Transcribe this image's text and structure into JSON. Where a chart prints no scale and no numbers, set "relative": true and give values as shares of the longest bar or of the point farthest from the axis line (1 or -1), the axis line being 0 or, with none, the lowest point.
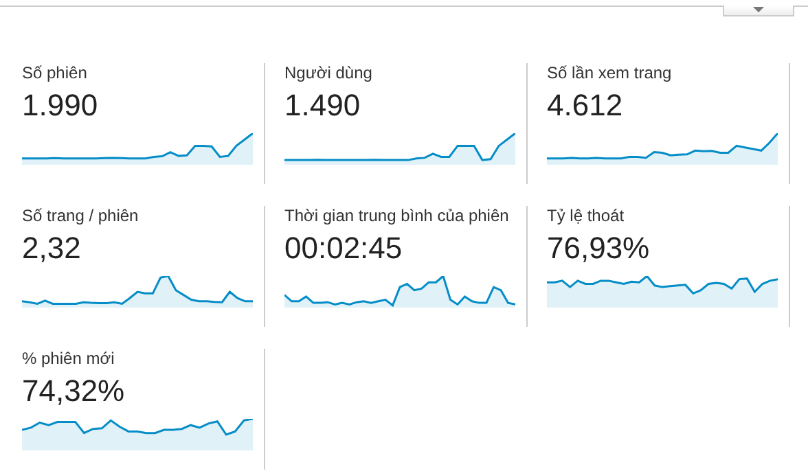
{
  "chart_data": [
    {
      "type": "area",
      "relative": true,
      "title": "Số phiên",
      "subtitle": "1.990",
      "categories": [
        null,
        null,
        null,
        null,
        null,
        null,
        null,
        null,
        null,
        null,
        null,
        null,
        null,
        null,
        null,
        null,
        null,
        null,
        null,
        null,
        null,
        null,
        null,
        null,
        null,
        null,
        null,
        null,
        null
      ],
      "series": [
        {
          "color": "#058dc7",
          "values": [
            0.2,
            0.2,
            0.2,
            0.2,
            0.21,
            0.2,
            0.2,
            0.2,
            0.2,
            0.2,
            0.21,
            0.22,
            0.21,
            0.2,
            0.2,
            0.2,
            0.25,
            0.27,
            0.4,
            0.28,
            0.3,
            0.6,
            0.6,
            0.58,
            0.25,
            0.28,
            0.6,
            0.8,
            1
          ]
        }
      ]
    },
    {
      "type": "area",
      "relative": true,
      "title": "Người dùng",
      "subtitle": "1.490",
      "categories": [
        null,
        null,
        null,
        null,
        null,
        null,
        null,
        null,
        null,
        null,
        null,
        null,
        null,
        null,
        null,
        null,
        null,
        null,
        null,
        null,
        null,
        null,
        null,
        null,
        null,
        null,
        null,
        null,
        null
      ],
      "series": [
        {
          "color": "#058dc7",
          "values": [
            0.15,
            0.15,
            0.15,
            0.15,
            0.16,
            0.15,
            0.15,
            0.15,
            0.15,
            0.15,
            0.15,
            0.16,
            0.15,
            0.15,
            0.15,
            0.15,
            0.2,
            0.22,
            0.35,
            0.25,
            0.25,
            0.6,
            0.6,
            0.6,
            0.15,
            0.18,
            0.6,
            0.8,
            1
          ]
        }
      ]
    },
    {
      "type": "area",
      "relative": true,
      "title": "Số lần xem trang",
      "subtitle": "4.612",
      "categories": [
        null,
        null,
        null,
        null,
        null,
        null,
        null,
        null,
        null,
        null,
        null,
        null,
        null,
        null,
        null,
        null,
        null,
        null,
        null,
        null,
        null,
        null,
        null,
        null,
        null,
        null,
        null,
        null,
        null
      ],
      "series": [
        {
          "color": "#058dc7",
          "values": [
            0.2,
            0.2,
            0.2,
            0.22,
            0.2,
            0.2,
            0.22,
            0.2,
            0.2,
            0.2,
            0.25,
            0.25,
            0.22,
            0.4,
            0.38,
            0.3,
            0.32,
            0.33,
            0.45,
            0.43,
            0.44,
            0.38,
            0.38,
            0.6,
            0.55,
            0.5,
            0.45,
            0.7,
            1
          ]
        }
      ]
    },
    {
      "type": "area",
      "relative": true,
      "title": "Số trang / phiên",
      "subtitle": "2,32",
      "categories": [
        null,
        null,
        null,
        null,
        null,
        null,
        null,
        null,
        null,
        null,
        null,
        null,
        null,
        null,
        null,
        null,
        null,
        null,
        null,
        null,
        null,
        null,
        null,
        null,
        null,
        null,
        null,
        null,
        null,
        null,
        null
      ],
      "series": [
        {
          "color": "#058dc7",
          "values": [
            0.2,
            0.17,
            0.12,
            0.22,
            0.12,
            0.12,
            0.12,
            0.12,
            0.17,
            0.15,
            0.14,
            0.14,
            0.17,
            0.12,
            0.3,
            0.5,
            0.45,
            0.45,
            0.95,
            1,
            0.55,
            0.4,
            0.25,
            0.2,
            0.2,
            0.18,
            0.17,
            0.5,
            0.3,
            0.2,
            0.2
          ]
        }
      ]
    },
    {
      "type": "area",
      "relative": true,
      "title": "Thời gian trung bình của phiên",
      "subtitle": "00:02:45",
      "categories": [
        null,
        null,
        null,
        null,
        null,
        null,
        null,
        null,
        null,
        null,
        null,
        null,
        null,
        null,
        null,
        null,
        null,
        null,
        null,
        null,
        null,
        null,
        null,
        null,
        null,
        null,
        null,
        null,
        null,
        null,
        null,
        null,
        null
      ],
      "series": [
        {
          "color": "#058dc7",
          "values": [
            0.4,
            0.2,
            0.2,
            0.35,
            0.15,
            0.15,
            0.17,
            0.1,
            0.15,
            0.1,
            0.17,
            0.2,
            0.15,
            0.2,
            0.25,
            0.07,
            0.65,
            0.75,
            0.55,
            0.6,
            0.8,
            0.8,
            1,
            0.25,
            0.1,
            0.35,
            0.2,
            0.15,
            0.15,
            0.65,
            0.55,
            0.15,
            0.1
          ]
        }
      ]
    },
    {
      "type": "area",
      "relative": true,
      "title": "Tỷ lệ thoát",
      "subtitle": "76,93%",
      "categories": [
        null,
        null,
        null,
        null,
        null,
        null,
        null,
        null,
        null,
        null,
        null,
        null,
        null,
        null,
        null,
        null,
        null,
        null,
        null,
        null,
        null,
        null,
        null,
        null,
        null,
        null,
        null,
        null,
        null,
        null,
        null
      ],
      "series": [
        {
          "color": "#058dc7",
          "values": [
            0.8,
            0.8,
            0.85,
            0.65,
            0.85,
            0.75,
            0.75,
            0.85,
            0.85,
            0.8,
            0.75,
            0.82,
            0.8,
            1,
            0.7,
            0.65,
            0.68,
            0.7,
            0.72,
            0.45,
            0.55,
            0.75,
            0.78,
            0.75,
            0.6,
            0.9,
            0.92,
            0.5,
            0.75,
            0.85,
            0.9
          ]
        }
      ]
    },
    {
      "type": "area",
      "relative": true,
      "title": "% phiên mới",
      "subtitle": "74,32%",
      "categories": [
        null,
        null,
        null,
        null,
        null,
        null,
        null,
        null,
        null,
        null,
        null,
        null,
        null,
        null,
        null,
        null,
        null,
        null,
        null,
        null,
        null,
        null,
        null,
        null,
        null,
        null,
        null
      ],
      "series": [
        {
          "color": "#058dc7",
          "values": [
            0.65,
            0.72,
            0.88,
            0.8,
            0.9,
            0.9,
            0.9,
            0.55,
            0.68,
            0.7,
            0.95,
            0.75,
            0.6,
            0.6,
            0.55,
            0.55,
            0.65,
            0.65,
            0.68,
            0.8,
            0.72,
            0.85,
            0.92,
            0.5,
            0.6,
            0.95,
            1
          ]
        }
      ]
    }
  ]
}
